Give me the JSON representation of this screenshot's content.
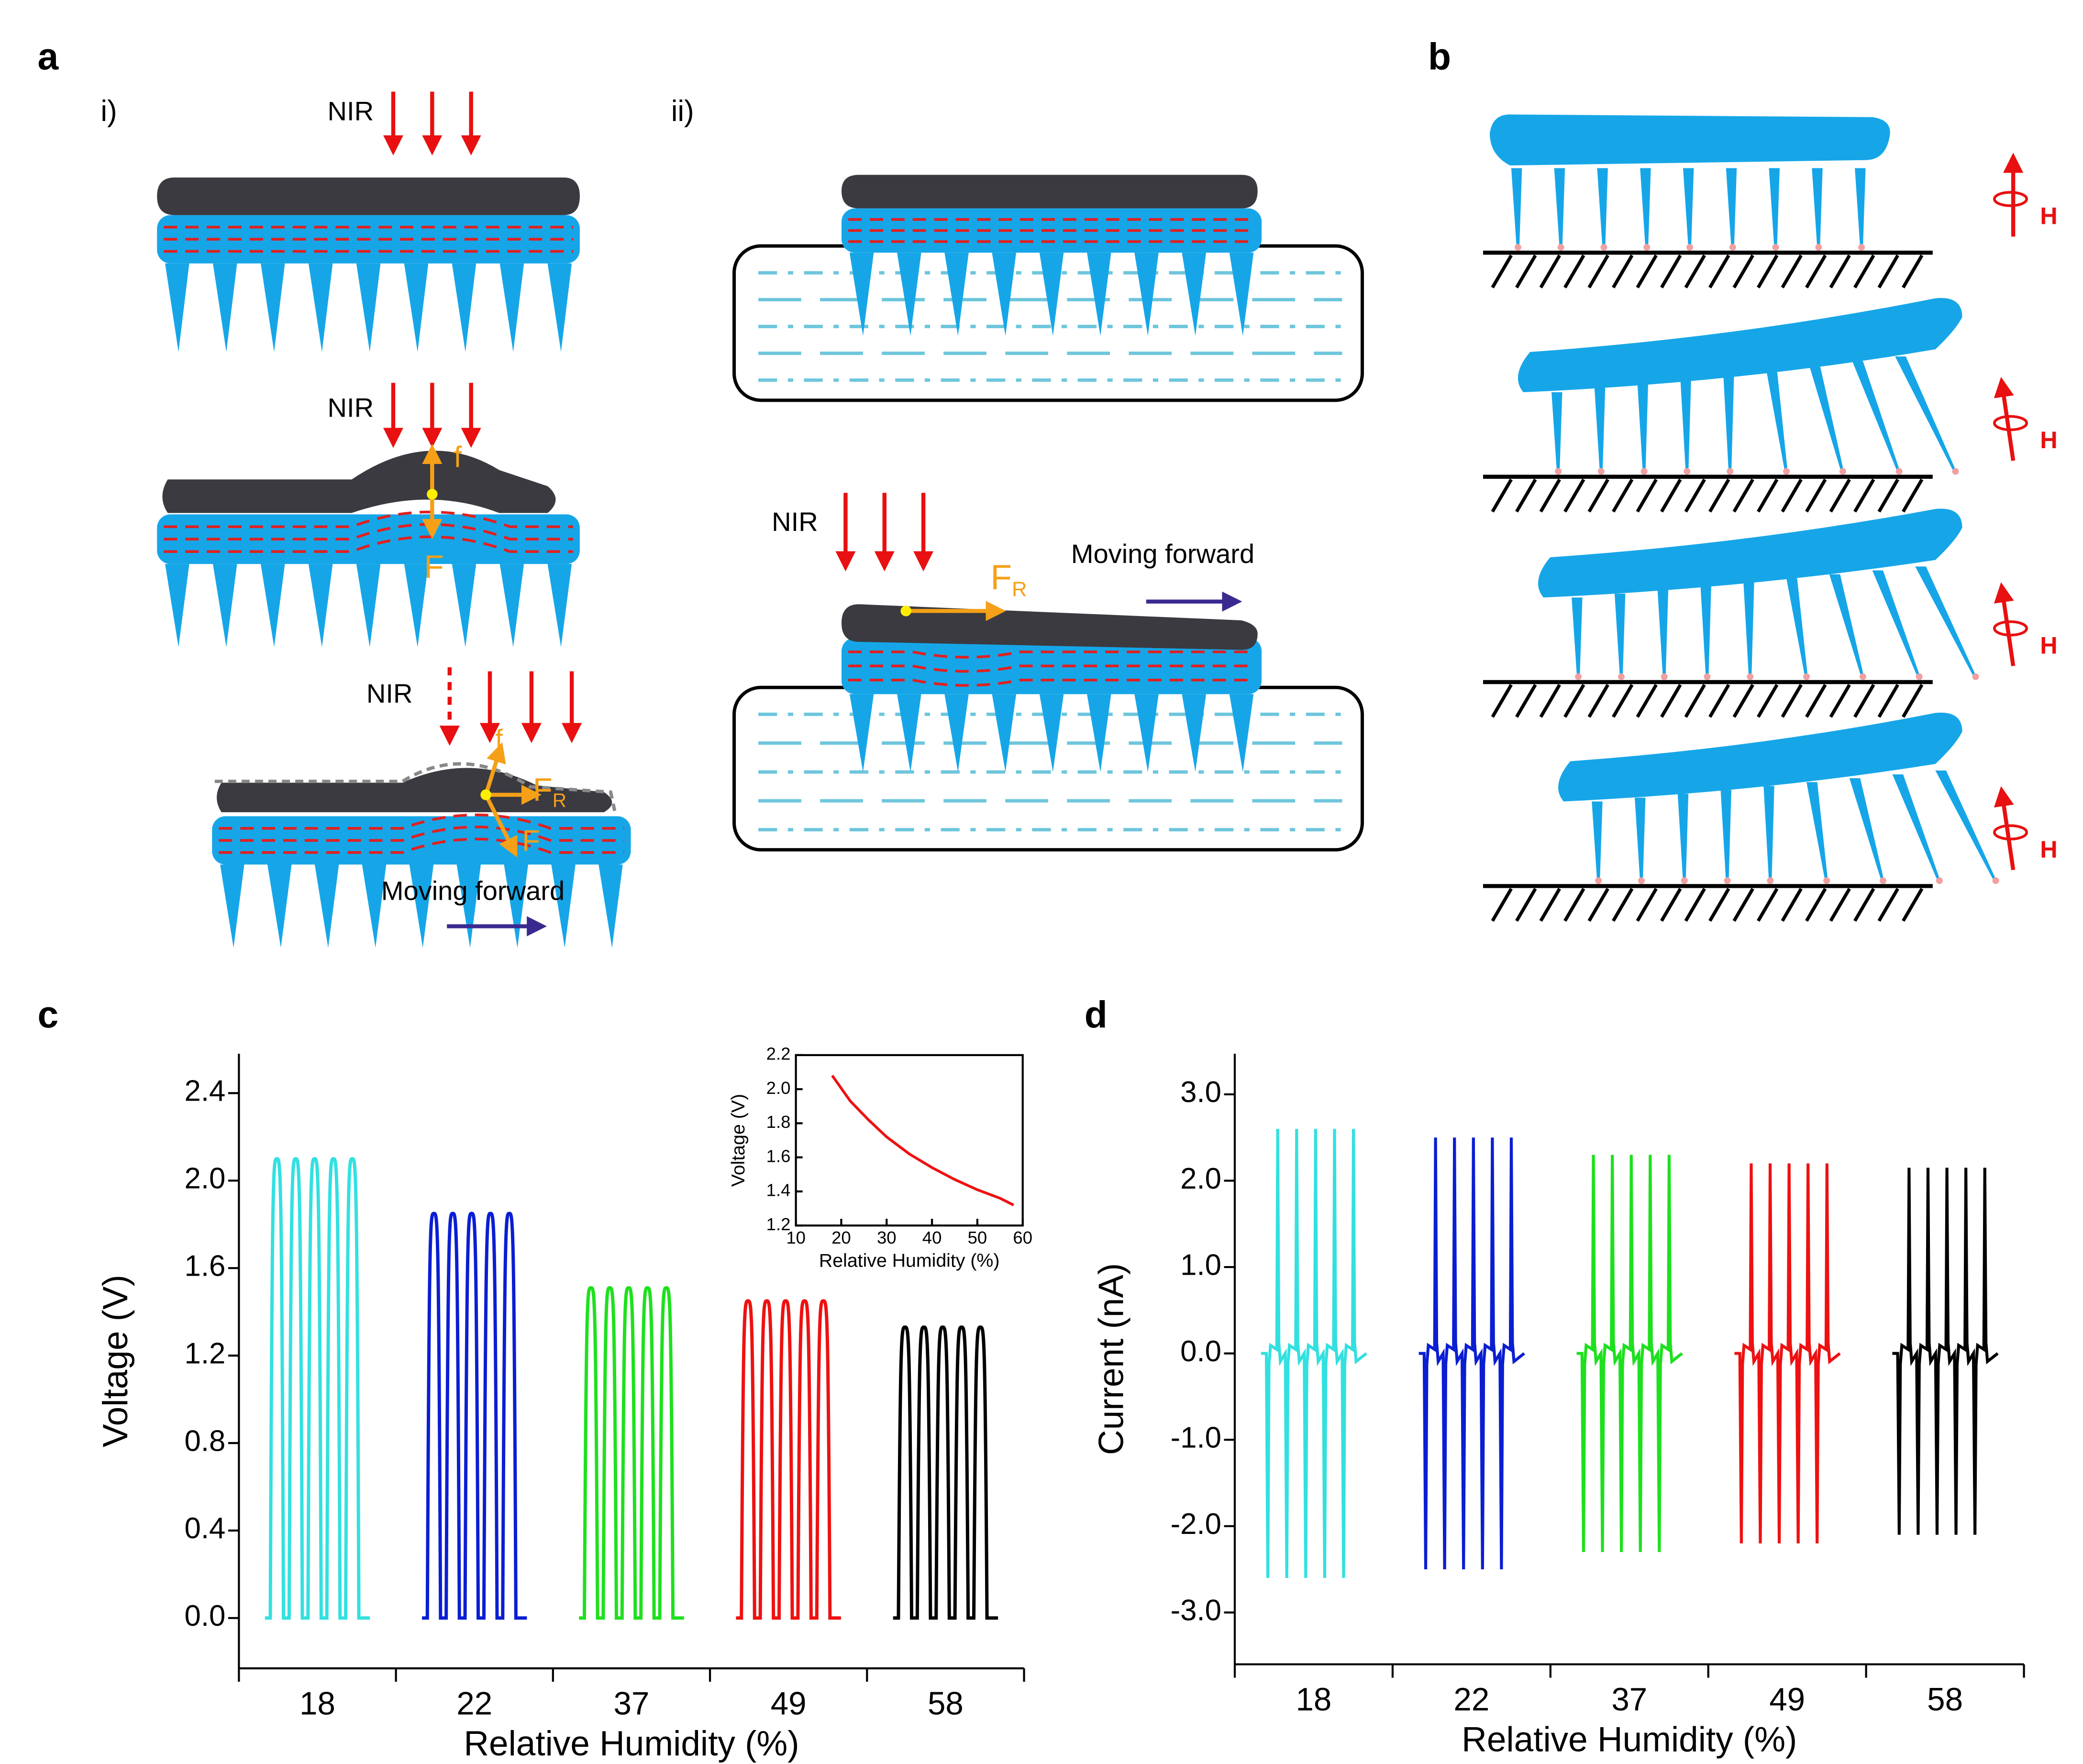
{
  "panel_a": {
    "label": "a",
    "part_i": {
      "label": "i)",
      "nir": [
        "NIR",
        "NIR",
        "NIR"
      ],
      "force_labels": [
        "f",
        "F",
        "f",
        "F"
      ],
      "fr": {
        "main": "F",
        "sub": "R"
      },
      "moving": "Moving forward"
    },
    "part_ii": {
      "label": "ii)",
      "nir": "NIR",
      "fr": {
        "main": "F",
        "sub": "R"
      },
      "moving": "Moving forward"
    }
  },
  "panel_b": {
    "label": "b",
    "field_labels": [
      "H",
      "H",
      "H",
      "H"
    ]
  },
  "panel_c": {
    "label": "c"
  },
  "panel_d": {
    "label": "d"
  },
  "chart_data": [
    {
      "type": "pulse",
      "categories": [
        "18",
        "22",
        "37",
        "49",
        "58"
      ],
      "values": [
        2.1,
        1.85,
        1.51,
        1.45,
        1.33
      ],
      "colors": [
        "#33e0e0",
        "#0a1ed2",
        "#1ee01e",
        "#ee1111",
        "#000000"
      ],
      "pulses_per_group": 5,
      "ylim": [
        -0.23,
        2.58
      ],
      "yticks": [
        {
          "value": 0,
          "label": "0.0"
        },
        0.4,
        0.8,
        1.2,
        1.6,
        {
          "value": 2,
          "label": "2.0"
        },
        2.4
      ],
      "xlabel": "Relative Humidity (%)",
      "ylabel": "Voltage (V)"
    },
    {
      "type": "spike",
      "categories": [
        "18",
        "22",
        "37",
        "49",
        "58"
      ],
      "values_max": [
        2.6,
        2.5,
        2.3,
        2.2,
        2.15
      ],
      "values_min": [
        -2.6,
        -2.5,
        -2.3,
        -2.2,
        -2.1
      ],
      "colors": [
        "#33e0e0",
        "#0a1ed2",
        "#1ee01e",
        "#ee1111",
        "#000000"
      ],
      "pulses_per_group": 5,
      "ylim": [
        -3.6,
        3.47
      ],
      "yticks": [
        {
          "value": -3,
          "label": "-3.0"
        },
        {
          "value": -2,
          "label": "-2.0"
        },
        {
          "value": -1,
          "label": "-1.0"
        },
        {
          "value": 0,
          "label": "0.0"
        },
        {
          "value": 1,
          "label": "1.0"
        },
        {
          "value": 2,
          "label": "2.0"
        },
        {
          "value": 3,
          "label": "3.0"
        }
      ],
      "xlabel": "Relative Humidity (%)",
      "ylabel": "Current (nA)"
    },
    {
      "type": "line",
      "x": [
        18,
        22,
        26,
        30,
        35,
        40,
        45,
        50,
        55,
        58
      ],
      "values": [
        2.08,
        1.93,
        1.82,
        1.72,
        1.62,
        1.54,
        1.47,
        1.41,
        1.36,
        1.32
      ],
      "color": "#ee1111",
      "xlim": [
        10,
        60
      ],
      "ylim": [
        1.2,
        2.2
      ],
      "xticks": [
        10,
        20,
        30,
        40,
        50,
        60
      ],
      "yticks": [
        1.2,
        1.4,
        1.6,
        1.8,
        {
          "value": 2,
          "label": "2.0"
        },
        2.2
      ],
      "xlabel": "Relative Humidity (%)",
      "ylabel": "Voltage (V)"
    }
  ]
}
